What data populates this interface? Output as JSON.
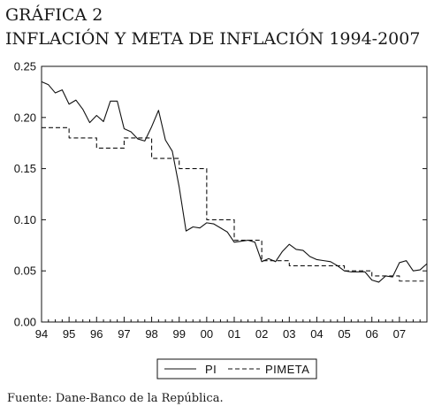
{
  "header": {
    "title_line1": "GRÁFICA 2",
    "title_line2": "INFLACIÓN Y META DE INFLACIÓN 1994-2007"
  },
  "footer": {
    "source": "Fuente: Dane-Banco de la República."
  },
  "chart_data": {
    "type": "line",
    "title": "INFLACIÓN Y META DE INFLACIÓN 1994-2007",
    "xlabel": "",
    "ylabel": "",
    "ylim": [
      0.0,
      0.25
    ],
    "yticks": [
      0.0,
      0.05,
      0.1,
      0.15,
      0.2,
      0.25
    ],
    "ytick_labels": [
      "0.00",
      "0.05",
      "0.10",
      "0.15",
      "0.20",
      "0.25"
    ],
    "xlim": [
      1994.0,
      2008.0
    ],
    "xticks": [
      1994,
      1995,
      1996,
      1997,
      1998,
      1999,
      2000,
      2001,
      2002,
      2003,
      2004,
      2005,
      2006,
      2007
    ],
    "xtick_labels": [
      "94",
      "95",
      "96",
      "97",
      "98",
      "99",
      "00",
      "01",
      "02",
      "03",
      "04",
      "05",
      "06",
      "07"
    ],
    "grid": false,
    "legend_position": "bottom",
    "series": [
      {
        "name": "PI",
        "style": "solid",
        "color": "#111111",
        "x": [
          1994.0,
          1994.25,
          1994.5,
          1994.75,
          1995.0,
          1995.25,
          1995.5,
          1995.75,
          1996.0,
          1996.25,
          1996.5,
          1996.75,
          1997.0,
          1997.25,
          1997.5,
          1997.75,
          1998.0,
          1998.25,
          1998.5,
          1998.75,
          1999.0,
          1999.25,
          1999.5,
          1999.75,
          2000.0,
          2000.25,
          2000.5,
          2000.75,
          2001.0,
          2001.25,
          2001.5,
          2001.75,
          2002.0,
          2002.25,
          2002.5,
          2002.75,
          2003.0,
          2003.25,
          2003.5,
          2003.75,
          2004.0,
          2004.25,
          2004.5,
          2004.75,
          2005.0,
          2005.25,
          2005.5,
          2005.75,
          2006.0,
          2006.25,
          2006.5,
          2006.75,
          2007.0,
          2007.25,
          2007.5,
          2007.75,
          2008.0
        ],
        "values": [
          0.235,
          0.232,
          0.224,
          0.227,
          0.213,
          0.217,
          0.208,
          0.195,
          0.202,
          0.196,
          0.216,
          0.216,
          0.189,
          0.186,
          0.179,
          0.177,
          0.191,
          0.207,
          0.178,
          0.167,
          0.132,
          0.089,
          0.093,
          0.092,
          0.097,
          0.096,
          0.092,
          0.088,
          0.078,
          0.079,
          0.08,
          0.078,
          0.059,
          0.062,
          0.059,
          0.069,
          0.076,
          0.071,
          0.07,
          0.064,
          0.061,
          0.06,
          0.059,
          0.055,
          0.05,
          0.049,
          0.049,
          0.049,
          0.041,
          0.039,
          0.045,
          0.044,
          0.058,
          0.06,
          0.05,
          0.051,
          0.057
        ]
      },
      {
        "name": "PIMETA",
        "style": "dashed",
        "color": "#111111",
        "x": [
          1994.0,
          1995.0,
          1995.0,
          1996.0,
          1996.0,
          1997.0,
          1997.0,
          1998.0,
          1998.0,
          1999.0,
          1999.0,
          2000.0,
          2000.0,
          2001.0,
          2001.0,
          2002.0,
          2002.0,
          2003.0,
          2003.0,
          2005.0,
          2005.0,
          2006.0,
          2006.0,
          2007.0,
          2007.0,
          2008.0
        ],
        "values": [
          0.19,
          0.19,
          0.18,
          0.18,
          0.17,
          0.17,
          0.18,
          0.18,
          0.16,
          0.16,
          0.15,
          0.15,
          0.1,
          0.1,
          0.08,
          0.08,
          0.06,
          0.06,
          0.055,
          0.055,
          0.05,
          0.05,
          0.045,
          0.045,
          0.04,
          0.04
        ]
      }
    ]
  }
}
